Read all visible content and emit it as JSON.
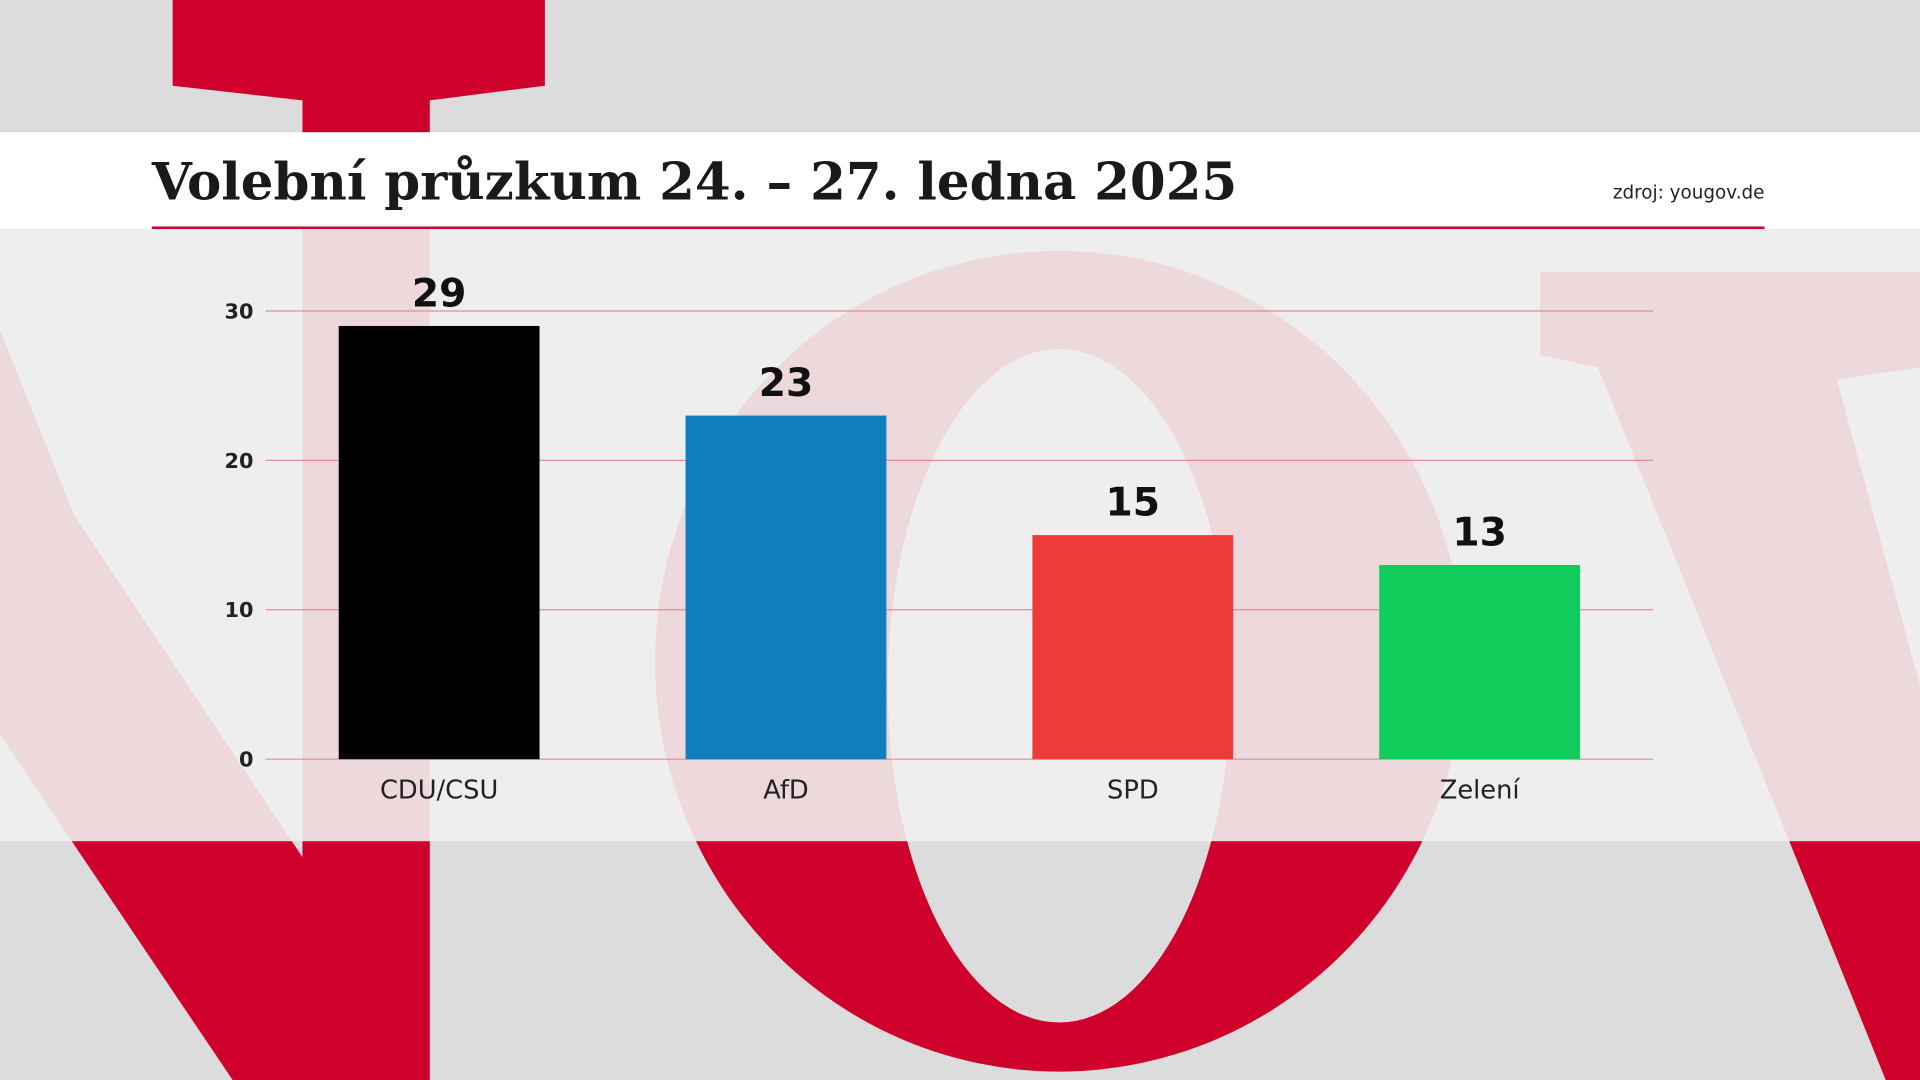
{
  "chart_data": {
    "type": "bar",
    "title": "Volební průzkum 24. – 27. ledna 2025",
    "source": "zdroj: yougov.de",
    "categories": [
      "CDU/CSU",
      "AfD",
      "SPD",
      "Zelení"
    ],
    "values": [
      29,
      23,
      15,
      13
    ],
    "colors": [
      "#000000",
      "#0e7ebe",
      "#ef3a3a",
      "#10cc5a"
    ],
    "ylim": [
      0,
      30
    ],
    "yticks": [
      0,
      10,
      20,
      30
    ],
    "grid": true
  }
}
